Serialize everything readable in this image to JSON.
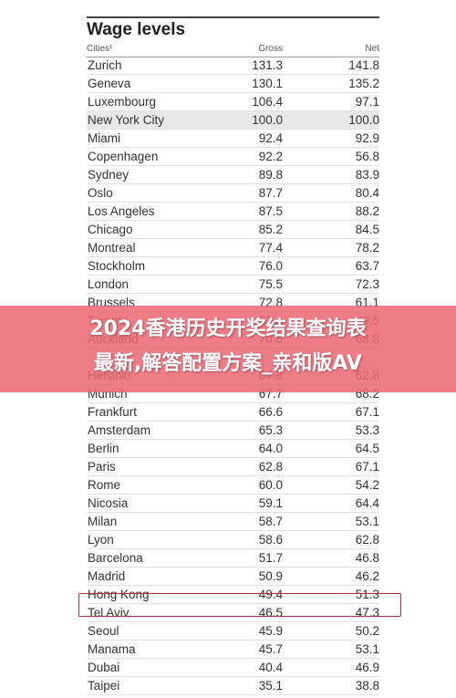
{
  "document": {
    "title": "Wage levels",
    "columns": {
      "city": "Cities¹",
      "gross": "Gross",
      "net": "Net"
    },
    "rows": [
      {
        "city": "Zurich",
        "gross": "131.3",
        "net": "141.8"
      },
      {
        "city": "Geneva",
        "gross": "130.1",
        "net": "135.2"
      },
      {
        "city": "Luxembourg",
        "gross": "106.4",
        "net": "97.1"
      },
      {
        "city": "New York City",
        "gross": "100.0",
        "net": "100.0"
      },
      {
        "city": "Miami",
        "gross": "92.4",
        "net": "92.9"
      },
      {
        "city": "Copenhagen",
        "gross": "92.2",
        "net": "56.8"
      },
      {
        "city": "Sydney",
        "gross": "89.8",
        "net": "83.9"
      },
      {
        "city": "Oslo",
        "gross": "87.7",
        "net": "80.4"
      },
      {
        "city": "Los Angeles",
        "gross": "87.5",
        "net": "88.2"
      },
      {
        "city": "Chicago",
        "gross": "85.2",
        "net": "84.5"
      },
      {
        "city": "Montreal",
        "gross": "77.4",
        "net": "78.2"
      },
      {
        "city": "Stockholm",
        "gross": "76.0",
        "net": "63.7"
      },
      {
        "city": "London",
        "gross": "75.5",
        "net": "72.3"
      },
      {
        "city": "Brussels",
        "gross": "72.8",
        "net": "61.1"
      },
      {
        "city": "Toronto",
        "gross": "71.4",
        "net": "69.5"
      },
      {
        "city": "Auckland",
        "gross": "70.6",
        "net": "68.8"
      },
      {
        "city": "",
        "gross": "",
        "net": ""
      },
      {
        "city": "Helsinki",
        "gross": "67.8",
        "net": "62.8"
      },
      {
        "city": "Munich",
        "gross": "67.7",
        "net": "68.2"
      },
      {
        "city": "Frankfurt",
        "gross": "66.6",
        "net": "67.1"
      },
      {
        "city": "Amsterdam",
        "gross": "65.3",
        "net": "53.3"
      },
      {
        "city": "Berlin",
        "gross": "64.0",
        "net": "64.5"
      },
      {
        "city": "Paris",
        "gross": "62.8",
        "net": "67.1"
      },
      {
        "city": "Rome",
        "gross": "60.0",
        "net": "54.2"
      },
      {
        "city": "Nicosia",
        "gross": "59.1",
        "net": "64.4"
      },
      {
        "city": "Milan",
        "gross": "58.7",
        "net": "53.1"
      },
      {
        "city": "Lyon",
        "gross": "58.6",
        "net": "62.8"
      },
      {
        "city": "Barcelona",
        "gross": "51.7",
        "net": "46.8"
      },
      {
        "city": "Madrid",
        "gross": "50.9",
        "net": "46.2"
      },
      {
        "city": "Hong Kong",
        "gross": "49.4",
        "net": "51.3"
      },
      {
        "city": "Tel Aviv",
        "gross": "46.5",
        "net": "47.3"
      },
      {
        "city": "Seoul",
        "gross": "45.9",
        "net": "50.2"
      },
      {
        "city": "Manama",
        "gross": "45.7",
        "net": "53.1"
      },
      {
        "city": "Dubai",
        "gross": "40.4",
        "net": "46.9"
      },
      {
        "city": "Taipei",
        "gross": "35.1",
        "net": "38.8"
      }
    ],
    "highlighted_row": "New York City",
    "boxed_row": "Hong Kong"
  },
  "banner": {
    "line1": "2024香港历史开奖结果查询表",
    "line2": "最新,解答配置方案_亲和版AV"
  },
  "colors": {
    "banner": "#ec6874",
    "box_outline": "#b6303b",
    "highlight_row": "#e8e8e8"
  }
}
